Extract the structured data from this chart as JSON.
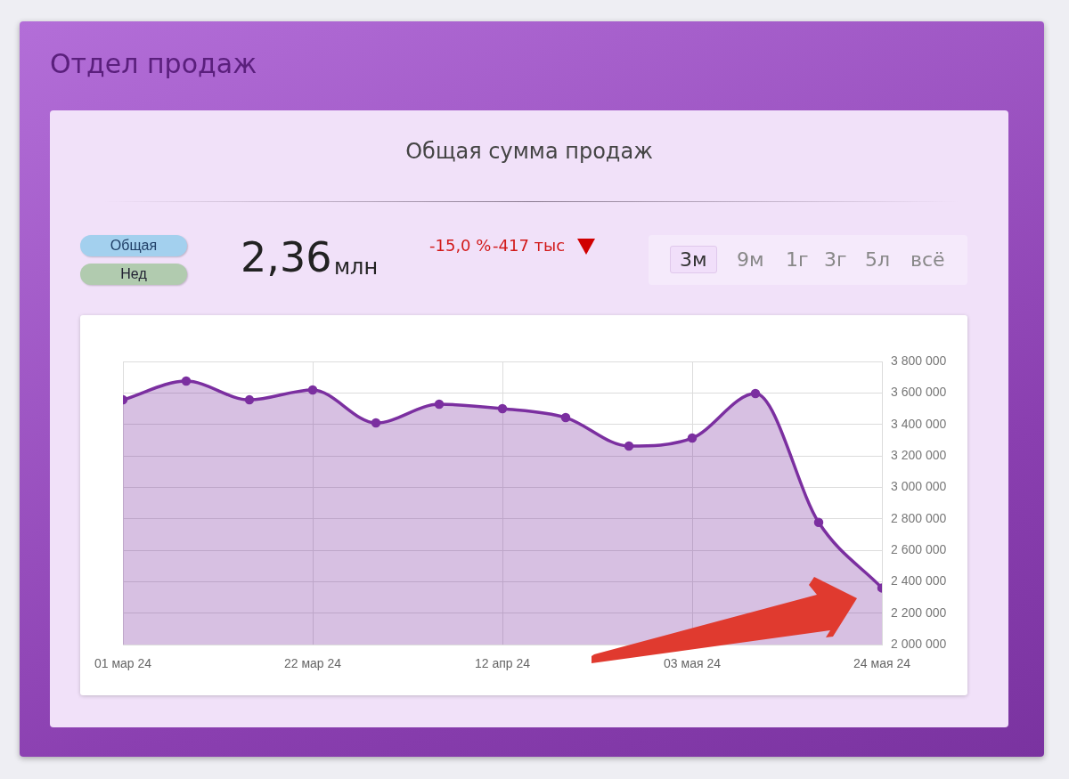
{
  "chart_data": {
    "type": "area",
    "title": "Отдел продаж",
    "subtitle": "Общая сумма продаж",
    "annotations": [
      "Общая",
      "Нед",
      "2,36",
      "млн",
      "-15,0 %",
      "-417 тыс",
      "3м",
      "9м",
      "1г",
      "3г",
      "5л",
      "всё"
    ],
    "x": [
      "2024-03-01",
      "2024-03-08",
      "2024-03-15",
      "2024-03-22",
      "2024-03-29",
      "2024-04-05",
      "2024-04-12",
      "2024-04-19",
      "2024-04-26",
      "2024-05-03",
      "2024-05-10",
      "2024-05-17",
      "2024-05-24"
    ],
    "series": [
      {
        "color": "#7b2fa0",
        "values": [
          3556000,
          3675000,
          3556000,
          3619000,
          3409000,
          3528000,
          3500000,
          3443000,
          3262000,
          3313000,
          3596000,
          2777000,
          2360000
        ]
      }
    ],
    "xlim": [
      "2024-03-01",
      "2024-05-24"
    ],
    "xticks": [
      {
        "value": "2024-03-01",
        "label": "01 мар 24"
      },
      {
        "value": "2024-03-22",
        "label": "22 мар 24"
      },
      {
        "value": "2024-04-12",
        "label": "12 апр 24"
      },
      {
        "value": "2024-05-03",
        "label": "03 мая 24"
      },
      {
        "value": "2024-05-24",
        "label": "24 мая 24"
      }
    ],
    "ylim": [
      2000000,
      3800000
    ],
    "yticks": [
      {
        "value": 2000000,
        "label": "2 000 000"
      },
      {
        "value": 2200000,
        "label": "2 200 000"
      },
      {
        "value": 2400000,
        "label": "2 400 000"
      },
      {
        "value": 2600000,
        "label": "2 600 000"
      },
      {
        "value": 2800000,
        "label": "2 800 000"
      },
      {
        "value": 3000000,
        "label": "3 000 000"
      },
      {
        "value": 3200000,
        "label": "3 200 000"
      },
      {
        "value": 3400000,
        "label": "3 400 000"
      },
      {
        "value": 3600000,
        "label": "3 600 000"
      },
      {
        "value": 3800000,
        "label": "3 800 000"
      }
    ],
    "grid": true,
    "legend": false,
    "marker": "circle",
    "line_style": "solid"
  }
}
